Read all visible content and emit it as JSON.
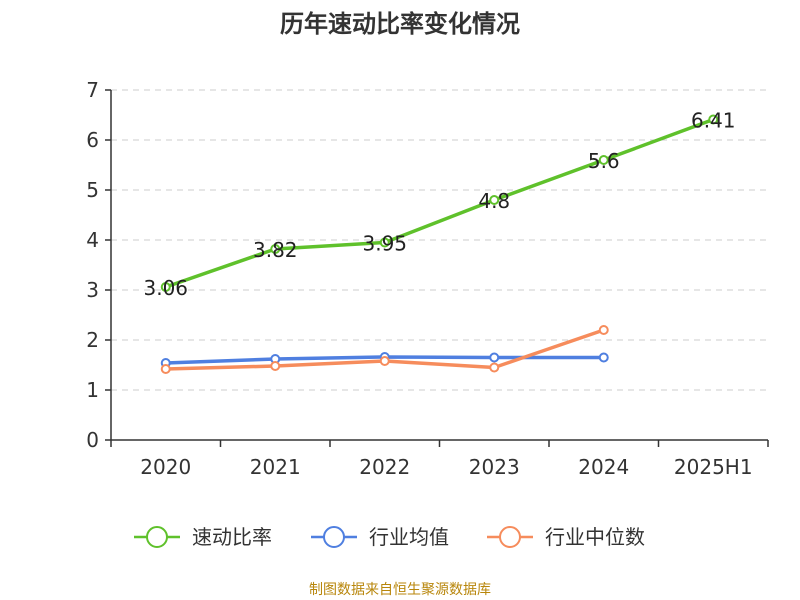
{
  "chart_data": {
    "type": "line",
    "title": "历年速动比率变化情况",
    "categories": [
      "2020",
      "2021",
      "2022",
      "2023",
      "2024",
      "2025H1"
    ],
    "ylim": [
      0,
      7
    ],
    "yticks": [
      "0",
      "1",
      "2",
      "3",
      "4",
      "5",
      "6",
      "7"
    ],
    "grid": true,
    "legend_position": "bottom",
    "series": [
      {
        "name": "速动比率",
        "color": "#5fc12b",
        "values": [
          3.06,
          3.82,
          3.95,
          4.8,
          5.6,
          6.41
        ],
        "labels": [
          "3.06",
          "3.82",
          "3.95",
          "4.8",
          "5.6",
          "6.41"
        ]
      },
      {
        "name": "行业均值",
        "color": "#4f7fe0",
        "values": [
          1.54,
          1.62,
          1.66,
          1.65,
          1.65,
          null
        ]
      },
      {
        "name": "行业中位数",
        "color": "#f68c5c",
        "values": [
          1.42,
          1.48,
          1.58,
          1.45,
          2.2,
          null
        ]
      }
    ]
  },
  "source_text": "制图数据来自恒生聚源数据库"
}
